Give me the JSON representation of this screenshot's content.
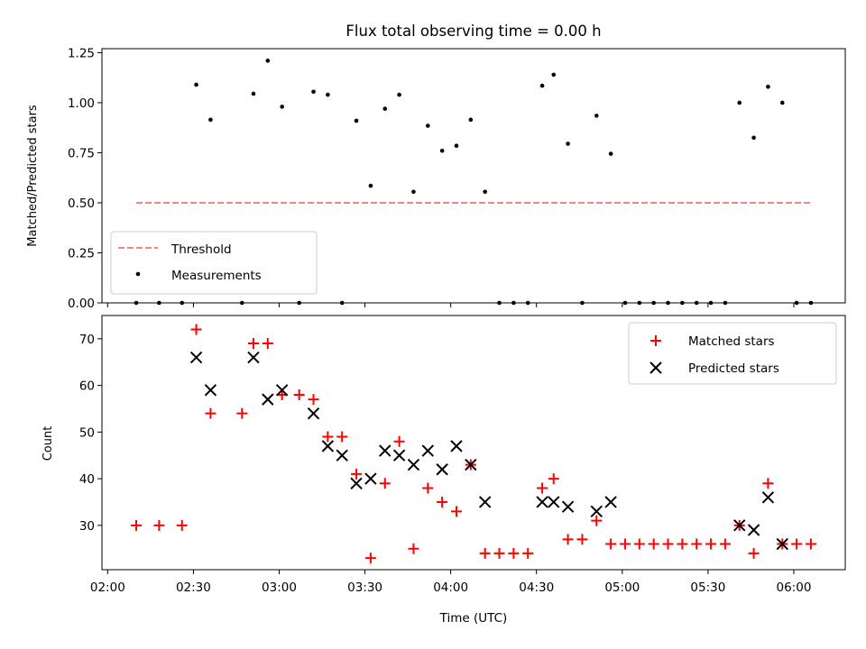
{
  "colors": {
    "threshold": "#ff7f7f",
    "measurements": "#000000",
    "matched": "#ff0000",
    "predicted": "#000000"
  },
  "chart_data": [
    {
      "type": "scatter",
      "title": "Flux total observing time = 0.00 h",
      "xlabel": "",
      "ylabel": "Matched/Predicted stars",
      "xlim_minutes": [
        118,
        378
      ],
      "ylim": [
        0,
        1.27
      ],
      "yticks": [
        0.0,
        0.25,
        0.5,
        0.75,
        1.0,
        1.25
      ],
      "ytick_labels": [
        "0.00",
        "0.25",
        "0.50",
        "0.75",
        "1.00",
        "1.25"
      ],
      "legend_position": "lower-left",
      "threshold": {
        "name": "Threshold",
        "value": 0.5,
        "x_range_minutes": [
          130,
          366
        ]
      },
      "series": [
        {
          "name": "Measurements",
          "x_minutes": [
            130,
            138,
            146,
            151,
            156,
            167,
            171,
            176,
            181,
            187,
            192,
            197,
            202,
            207,
            212,
            217,
            222,
            227,
            232,
            237,
            242,
            247,
            252,
            257,
            262,
            267,
            272,
            276,
            281,
            286,
            291,
            296,
            301,
            306,
            311,
            316,
            321,
            326,
            331,
            336,
            341,
            346,
            351,
            356,
            361,
            366
          ],
          "values": [
            0,
            0,
            0,
            1.09,
            0.915,
            0,
            1.045,
            1.21,
            0.98,
            0,
            1.055,
            1.04,
            0,
            0.91,
            0.585,
            0.97,
            1.04,
            0.555,
            0.885,
            0.76,
            0.785,
            0.915,
            0.555,
            0,
            0,
            0,
            1.085,
            1.14,
            0.795,
            0,
            0.935,
            0.745,
            0,
            0,
            0,
            0,
            0,
            0,
            0,
            0,
            1.0,
            0.825,
            1.08,
            1.0,
            0,
            0
          ]
        }
      ]
    },
    {
      "type": "scatter",
      "title": "",
      "xlabel": "Time (UTC)",
      "ylabel": "Count",
      "xlim_minutes": [
        118,
        378
      ],
      "ylim": [
        20.5,
        75
      ],
      "yticks": [
        30,
        40,
        50,
        60,
        70
      ],
      "ytick_labels": [
        "30",
        "40",
        "50",
        "60",
        "70"
      ],
      "xticks_minutes": [
        120,
        150,
        180,
        210,
        240,
        270,
        300,
        330,
        360
      ],
      "xtick_labels": [
        "02:00",
        "02:30",
        "03:00",
        "03:30",
        "04:00",
        "04:30",
        "05:00",
        "05:30",
        "06:00"
      ],
      "legend_position": "top-right",
      "series": [
        {
          "name": "Matched stars",
          "x_minutes": [
            130,
            138,
            146,
            151,
            156,
            167,
            171,
            176,
            181,
            187,
            192,
            197,
            202,
            207,
            212,
            217,
            222,
            227,
            232,
            237,
            242,
            247,
            252,
            257,
            262,
            267,
            272,
            276,
            281,
            286,
            291,
            296,
            301,
            306,
            311,
            316,
            321,
            326,
            331,
            336,
            341,
            346,
            351,
            356,
            361,
            366
          ],
          "values": [
            30,
            30,
            30,
            72,
            54,
            54,
            69,
            69,
            58,
            58,
            57,
            49,
            49,
            41,
            23,
            39,
            48,
            25,
            38,
            35,
            33,
            43,
            24,
            24,
            24,
            24,
            38,
            40,
            27,
            27,
            31,
            26,
            26,
            26,
            26,
            26,
            26,
            26,
            26,
            26,
            30,
            24,
            39,
            26,
            26,
            26
          ]
        },
        {
          "name": "Predicted stars",
          "x_minutes": [
            151,
            156,
            171,
            176,
            181,
            192,
            197,
            202,
            207,
            212,
            217,
            222,
            227,
            232,
            237,
            242,
            247,
            252,
            272,
            276,
            281,
            291,
            296,
            341,
            346,
            351,
            356
          ],
          "values": [
            66,
            59,
            66,
            57,
            59,
            54,
            47,
            45,
            39,
            40,
            46,
            45,
            43,
            46,
            42,
            47,
            43,
            35,
            35,
            35,
            34,
            33,
            35,
            30,
            29,
            36,
            26
          ]
        }
      ]
    }
  ]
}
